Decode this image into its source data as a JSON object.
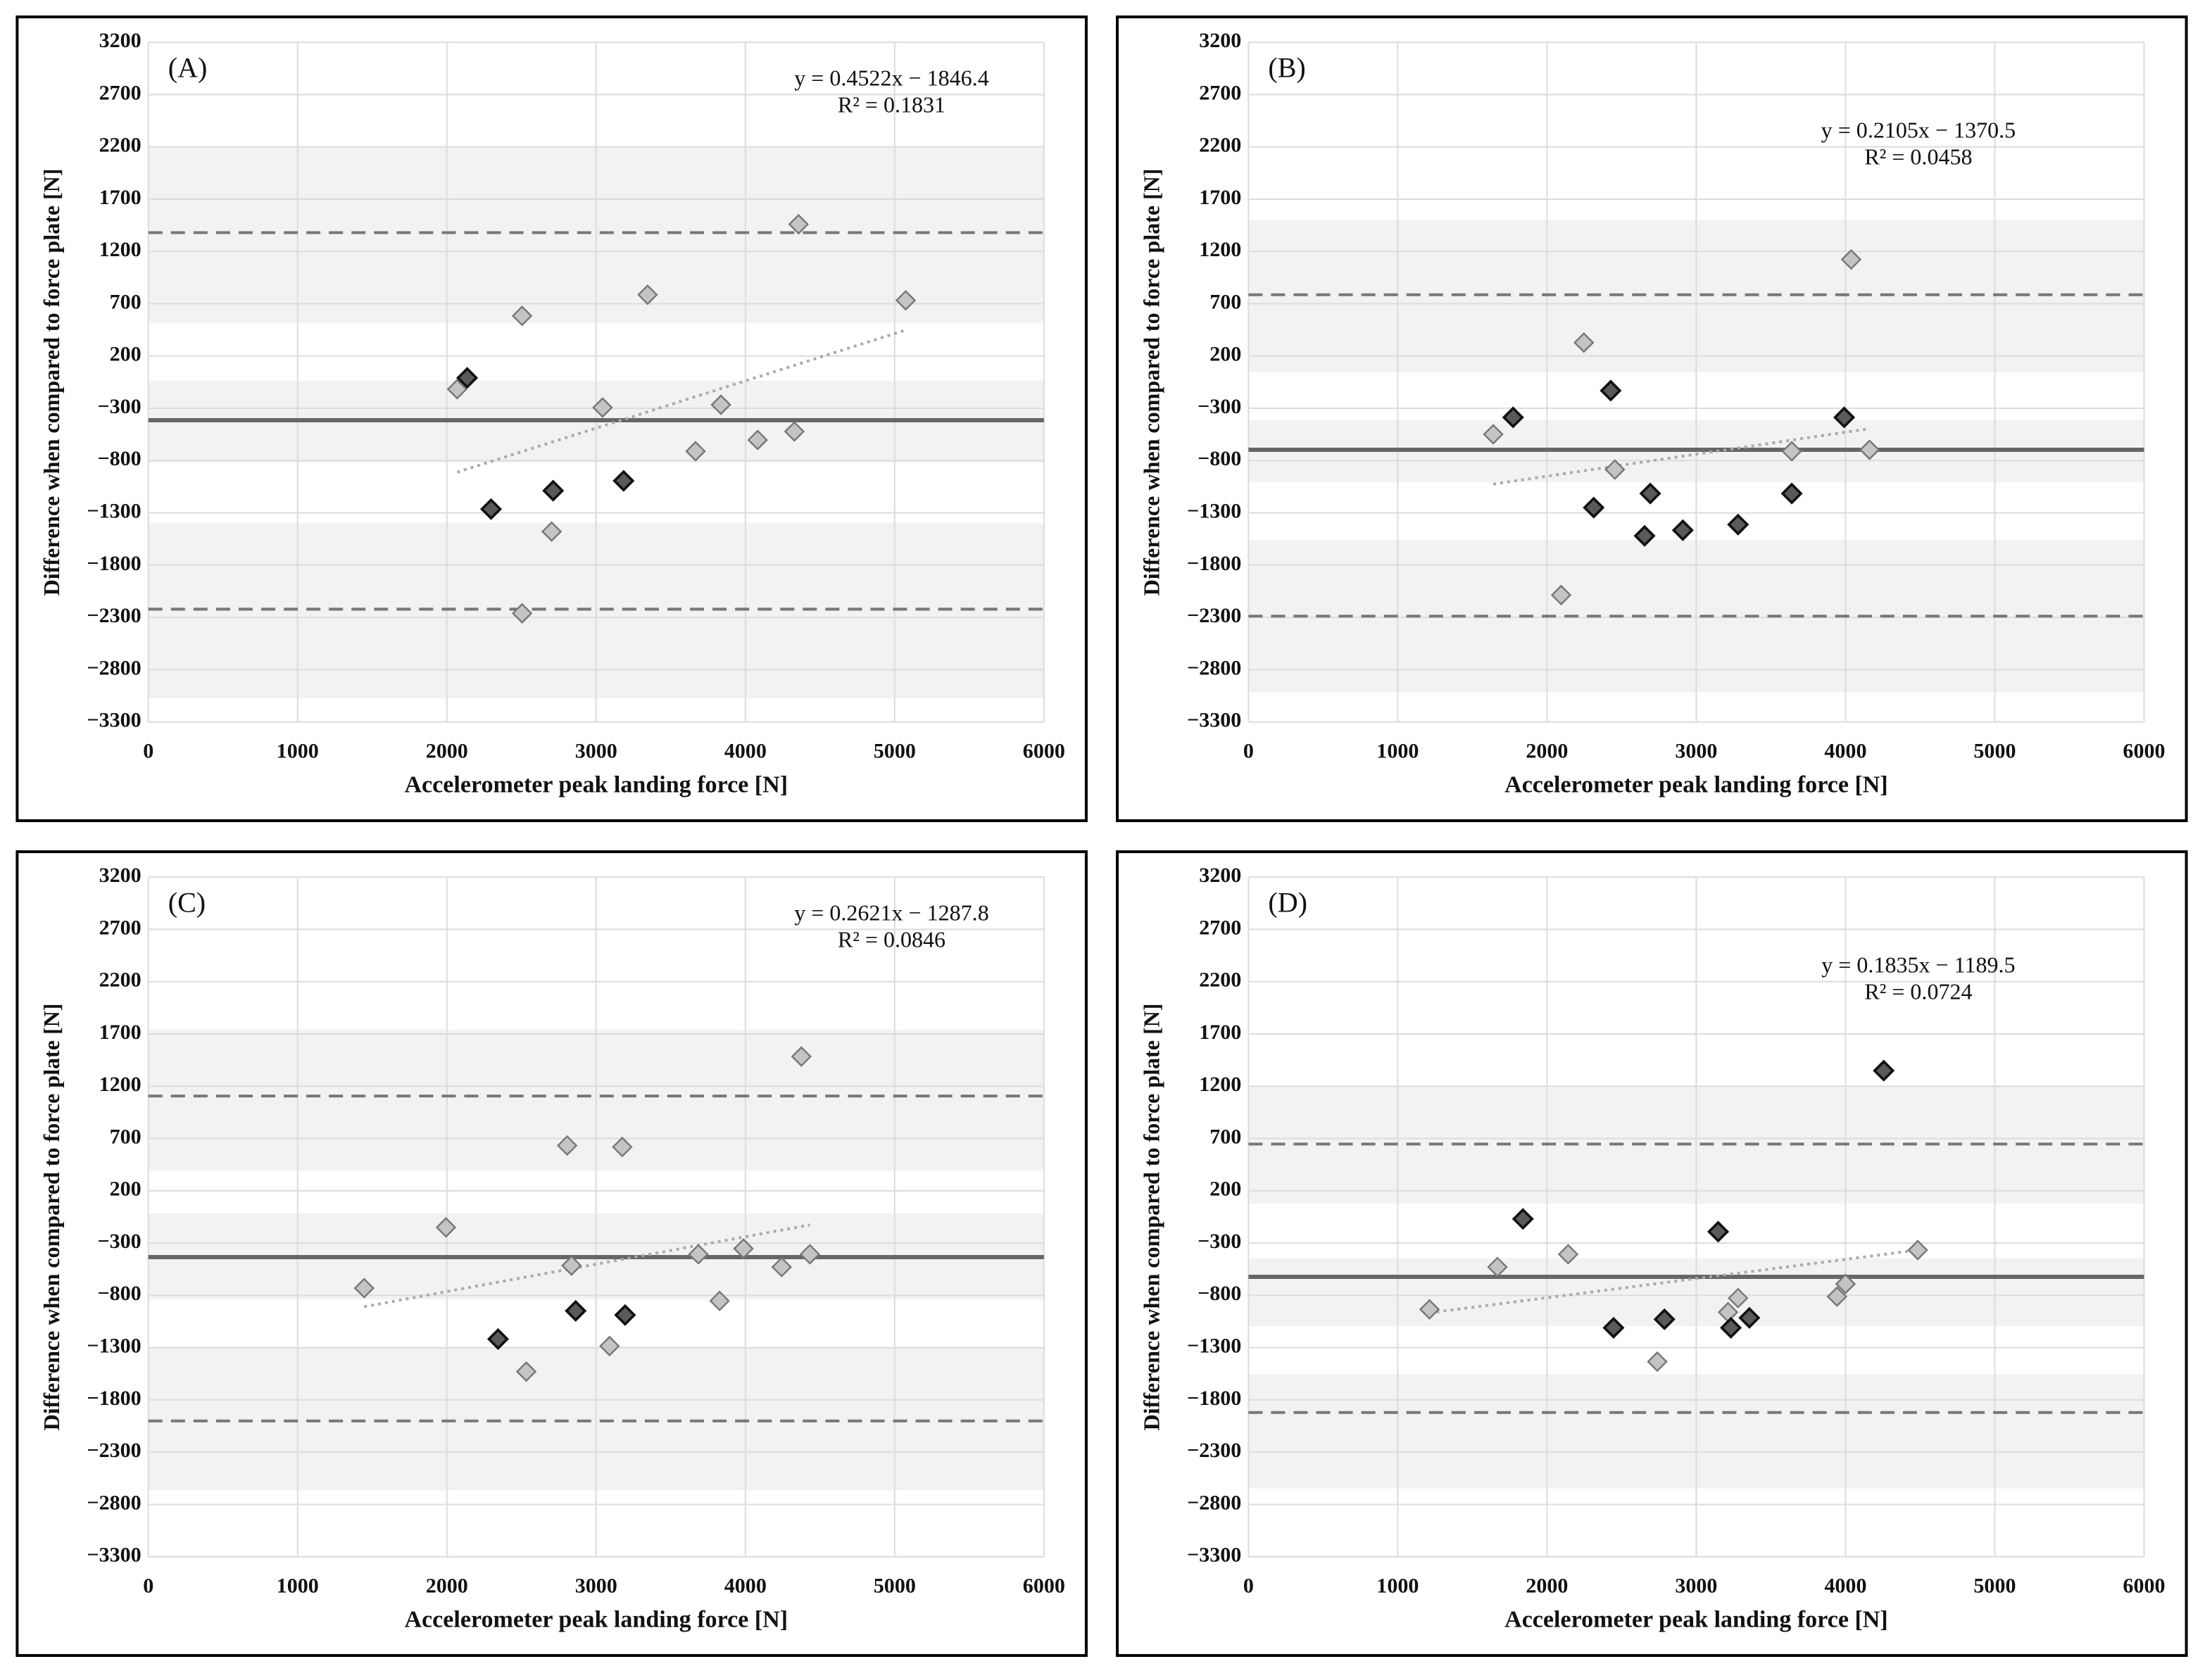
{
  "chart_data": [
    {
      "type": "scatter",
      "panel_label": "(A)",
      "equation": "y = 0.4522x − 1846.4",
      "r2": "R² = 0.1831",
      "xlabel": "Accelerometer peak landing force [N]",
      "ylabel": "Difference when compared to force plate [N]",
      "xlim": [
        0,
        6000
      ],
      "ylim": [
        -3300,
        3200
      ],
      "xticks": [
        0,
        1000,
        2000,
        3000,
        4000,
        5000,
        6000
      ],
      "yticks": [
        3200,
        2700,
        2200,
        1700,
        1200,
        700,
        200,
        {
          "value": -300,
          "label": "−300"
        },
        {
          "value": -800,
          "label": "−800"
        },
        {
          "value": -1300,
          "label": "−1300"
        },
        {
          "value": -1800,
          "label": "−1800"
        },
        {
          "value": -2300,
          "label": "−2300"
        },
        {
          "value": -2800,
          "label": "−2800"
        },
        {
          "value": -3300,
          "label": "−3300"
        }
      ],
      "grid": true,
      "bands": [
        [
          516,
          2200
        ],
        [
          -819,
          -36
        ],
        [
          -3071,
          -1398
        ]
      ],
      "mean_line": -414,
      "limit_lines": [
        1380,
        -2221
      ],
      "trendline": {
        "slope": 0.4522,
        "intercept": -1846.4
      },
      "series": [
        {
          "color": "#c4c4c4",
          "x": [
            2069,
            2504,
            2504,
            2702,
            3043,
            3345,
            3666,
            3836,
            4082,
            4328,
            4356,
            5074
          ],
          "values": [
            -117,
            584,
            -2261,
            -1479,
            -293,
            786,
            -711,
            -266,
            -603,
            -522,
            1460,
            732
          ]
        },
        {
          "color": "#5a5a5a",
          "x": [
            2136,
            2296,
            2712,
            3184
          ],
          "values": [
            -9,
            -1264,
            -1088,
            -994
          ]
        }
      ]
    },
    {
      "type": "scatter",
      "panel_label": "(B)",
      "equation": "y = 0.2105x − 1370.5",
      "r2": "R² = 0.0458",
      "xlabel": "Accelerometer peak landing force [N]",
      "ylabel": "Difference when compared to force plate [N]",
      "xlim": [
        0,
        6000
      ],
      "ylim": [
        -3300,
        3200
      ],
      "xticks": [
        0,
        1000,
        2000,
        3000,
        4000,
        5000,
        6000
      ],
      "yticks": [
        3200,
        2700,
        2200,
        1700,
        1200,
        700,
        200,
        {
          "value": -300,
          "label": "−300"
        },
        {
          "value": -800,
          "label": "−800"
        },
        {
          "value": -1300,
          "label": "−1300"
        },
        {
          "value": -1800,
          "label": "−1800"
        },
        {
          "value": -2300,
          "label": "−2300"
        },
        {
          "value": -2800,
          "label": "−2800"
        },
        {
          "value": -3300,
          "label": "−3300"
        }
      ],
      "grid": true,
      "bands": [
        [
          45,
          1501
        ],
        [
          -1007,
          -414
        ],
        [
          -3017,
          -1560
        ]
      ],
      "mean_line": -697,
      "limit_lines": [
        786,
        -2288
      ],
      "trendline": {
        "slope": 0.2105,
        "intercept": -1370.5
      },
      "series": [
        {
          "color": "#c4c4c4",
          "x": [
            1640,
            2247,
            2455,
            2095,
            3640,
            4038,
            4161
          ],
          "values": [
            -549,
            328,
            -886,
            -2086,
            -711,
            1123,
            -697
          ]
        },
        {
          "color": "#5a5a5a",
          "x": [
            1773,
            2427,
            2313,
            2692,
            2654,
            2910,
            3280,
            3640,
            3991
          ],
          "values": [
            -387,
            -131,
            -1250,
            -1115,
            -1520,
            -1466,
            -1412,
            -1115,
            -387
          ]
        }
      ]
    },
    {
      "type": "scatter",
      "panel_label": "(C)",
      "equation": "y = 0.2621x − 1287.8",
      "r2": "R² = 0.0846",
      "xlabel": "Accelerometer peak landing force [N]",
      "ylabel": "Difference when compared to force plate [N]",
      "xlim": [
        0,
        6000
      ],
      "ylim": [
        -3300,
        3200
      ],
      "xticks": [
        0,
        1000,
        2000,
        3000,
        4000,
        5000,
        6000
      ],
      "yticks": [
        3200,
        2700,
        2200,
        1700,
        1200,
        700,
        200,
        {
          "value": -300,
          "label": "−300"
        },
        {
          "value": -800,
          "label": "−800"
        },
        {
          "value": -1300,
          "label": "−1300"
        },
        {
          "value": -1800,
          "label": "−1800"
        },
        {
          "value": -2300,
          "label": "−2300"
        },
        {
          "value": -2800,
          "label": "−2800"
        },
        {
          "value": -3300,
          "label": "−3300"
        }
      ],
      "grid": true,
      "bands": [
        [
          390,
          1741
        ],
        [
          -839,
          -15
        ],
        [
          -2663,
          -1299
        ]
      ],
      "mean_line": -434,
      "limit_lines": [
        1106,
        -2001
      ],
      "trendline": {
        "slope": 0.2621,
        "intercept": -1287.8
      },
      "series": [
        {
          "color": "#c4c4c4",
          "x": [
            1446,
            1994,
            2532,
            2806,
            2835,
            3175,
            3090,
            3685,
            3987,
            4243,
            4375,
            4432,
            3827
          ],
          "values": [
            -731,
            -150,
            -1529,
            633,
            -515,
            619,
            -1285,
            -407,
            -353,
            -529,
            1484,
            -407,
            -853
          ]
        },
        {
          "color": "#5a5a5a",
          "x": [
            2343,
            2863,
            3194
          ],
          "values": [
            -1218,
            -948,
            -988
          ]
        }
      ]
    },
    {
      "type": "scatter",
      "panel_label": "(D)",
      "equation": "y = 0.1835x − 1189.5",
      "r2": "R² = 0.0724",
      "xlabel": "Accelerometer peak landing force [N]",
      "ylabel": "Difference when compared to force plate [N]",
      "xlim": [
        0,
        6000
      ],
      "ylim": [
        -3300,
        3200
      ],
      "xticks": [
        0,
        1000,
        2000,
        3000,
        4000,
        5000,
        6000
      ],
      "yticks": [
        3200,
        2700,
        2200,
        1700,
        1200,
        700,
        200,
        {
          "value": -300,
          "label": "−300"
        },
        {
          "value": -800,
          "label": "−800"
        },
        {
          "value": -1300,
          "label": "−1300"
        },
        {
          "value": -1800,
          "label": "−1800"
        },
        {
          "value": -2300,
          "label": "−2300"
        },
        {
          "value": -2800,
          "label": "−2800"
        },
        {
          "value": -3300,
          "label": "−3300"
        }
      ],
      "grid": true,
      "bands": [
        [
          79,
          1200
        ],
        [
          -1093,
          -444
        ],
        [
          -2647,
          -1553
        ]
      ],
      "mean_line": -623,
      "limit_lines": [
        647,
        -1920
      ],
      "trendline": {
        "slope": 0.1835,
        "intercept": -1189.5
      },
      "series": [
        {
          "color": "#c4c4c4",
          "x": [
            1213,
            1668,
            2142,
            2739,
            3213,
            3280,
            3943,
            4000,
            4484
          ],
          "values": [
            -934,
            -529,
            -407,
            -1434,
            -961,
            -826,
            -812,
            -691,
            -367
          ]
        },
        {
          "color": "#5a5a5a",
          "x": [
            1839,
            2446,
            2787,
            3147,
            3232,
            3356,
            4256
          ],
          "values": [
            -69,
            -1110,
            -1029,
            -191,
            -1110,
            -1015,
            1349
          ]
        }
      ]
    }
  ]
}
